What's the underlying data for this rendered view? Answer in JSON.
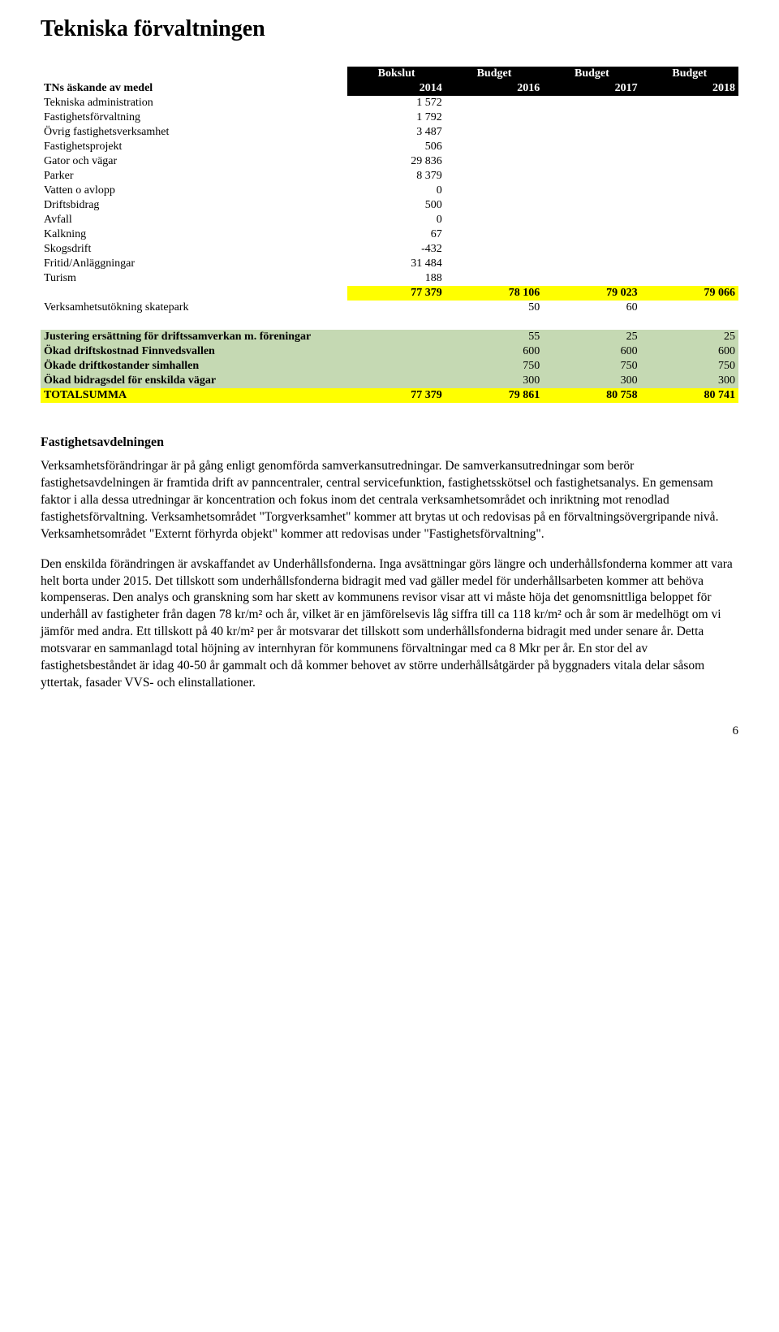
{
  "title": "Tekniska förvaltningen",
  "table": {
    "header_top": [
      "Bokslut",
      "Budget",
      "Budget",
      "Budget"
    ],
    "header_label": "TNs äskande av medel",
    "header_years": [
      "2014",
      "2016",
      "2017",
      "2018"
    ],
    "rows": [
      {
        "label": "Tekniska administration",
        "v": [
          "1 572",
          "",
          "",
          ""
        ]
      },
      {
        "label": "Fastighetsförvaltning",
        "v": [
          "1 792",
          "",
          "",
          ""
        ]
      },
      {
        "label": "Övrig fastighetsverksamhet",
        "v": [
          "3 487",
          "",
          "",
          ""
        ]
      },
      {
        "label": "Fastighetsprojekt",
        "v": [
          "506",
          "",
          "",
          ""
        ]
      },
      {
        "label": "Gator och vägar",
        "v": [
          "29 836",
          "",
          "",
          ""
        ]
      },
      {
        "label": "Parker",
        "v": [
          "8 379",
          "",
          "",
          ""
        ]
      },
      {
        "label": "Vatten o avlopp",
        "v": [
          "0",
          "",
          "",
          ""
        ]
      },
      {
        "label": "Driftsbidrag",
        "v": [
          "500",
          "",
          "",
          ""
        ]
      },
      {
        "label": "Avfall",
        "v": [
          "0",
          "",
          "",
          ""
        ]
      },
      {
        "label": "Kalkning",
        "v": [
          "67",
          "",
          "",
          ""
        ]
      },
      {
        "label": "Skogsdrift",
        "v": [
          "-432",
          "",
          "",
          ""
        ]
      },
      {
        "label": "Fritid/Anläggningar",
        "v": [
          "31 484",
          "",
          "",
          ""
        ]
      },
      {
        "label": "Turism",
        "v": [
          "188",
          "",
          "",
          ""
        ]
      }
    ],
    "yellow_sum": {
      "label": "",
      "v": [
        "77 379",
        "78 106",
        "79 023",
        "79 066"
      ]
    },
    "skate_label": "Verksamhetsutökning skatepark",
    "skate_v": [
      "",
      "50",
      "60",
      ""
    ],
    "green_rows": [
      {
        "label": "Justering ersättning för driftssamverkan m. föreningar",
        "v": [
          "",
          "55",
          "25",
          "25"
        ]
      },
      {
        "label": "Ökad driftskostnad Finnvedsvallen",
        "v": [
          "",
          "600",
          "600",
          "600"
        ]
      },
      {
        "label": "Ökade driftkostander simhallen",
        "v": [
          "",
          "750",
          "750",
          "750"
        ]
      },
      {
        "label": "Ökad bidragsdel för enskilda vägar",
        "v": [
          "",
          "300",
          "300",
          "300"
        ]
      }
    ],
    "total": {
      "label": "TOTALSUMMA",
      "v": [
        "77 379",
        "79 861",
        "80 758",
        "80 741"
      ]
    }
  },
  "section_title": "Fastighetsavdelningen",
  "para1": "Verksamhetsförändringar är på gång enligt genomförda samverkansutredningar. De samverkansutredningar som berör fastighetsavdelningen är framtida drift av panncentraler, central servicefunktion, fastighetsskötsel och fastighetsanalys. En gemensam faktor i alla dessa utredningar är koncentration och fokus inom det centrala verksamhetsområdet och inriktning mot renodlad fastighetsförvaltning. Verksamhetsområdet \"Torgverksamhet\" kommer att brytas ut och redovisas på en förvaltningsövergripande nivå. Verksamhetsområdet \"Externt förhyrda objekt\" kommer att redovisas under \"Fastighetsförvaltning\".",
  "para2": "Den enskilda förändringen är avskaffandet av Underhållsfonderna. Inga avsättningar görs längre och underhållsfonderna kommer att vara helt borta under 2015. Det tillskott som underhållsfonderna bidragit med vad gäller medel för underhållsarbeten kommer att behöva kompenseras. Den analys och granskning som har skett av kommunens revisor visar att vi måste höja det genomsnittliga beloppet för underhåll av fastigheter från dagen 78 kr/m² och år, vilket är en jämförelsevis låg siffra till ca 118 kr/m² och år som är medelhögt om vi jämför med andra. Ett tillskott på 40 kr/m² per år motsvarar det tillskott som underhållsfonderna bidragit med under senare år. Detta motsvarar en sammanlagd total höjning av internhyran för kommunens förvaltningar med ca 8 Mkr per år. En stor del av fastighetsbeståndet är idag 40-50 år gammalt och då kommer behovet av större underhållsåtgärder på byggnaders vitala delar såsom yttertak, fasader VVS- och elinstallationer.",
  "page_num": "6"
}
